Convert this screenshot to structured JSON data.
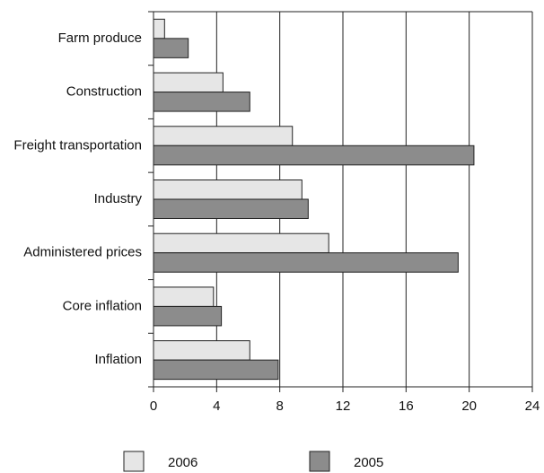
{
  "chart_data": {
    "type": "bar",
    "orientation": "horizontal",
    "categories": [
      "Farm produce",
      "Construction",
      "Freight transportation",
      "Industry",
      "Administered prices",
      "Core inflation",
      "Inflation"
    ],
    "series": [
      {
        "name": "2006",
        "color": "#e6e6e6",
        "values": [
          0.7,
          4.4,
          8.8,
          9.4,
          11.1,
          3.8,
          6.1
        ]
      },
      {
        "name": "2005",
        "color": "#8c8c8c",
        "values": [
          2.2,
          6.1,
          20.3,
          9.8,
          19.3,
          4.3,
          7.9
        ]
      }
    ],
    "xlim": [
      0,
      24
    ],
    "xticks": [
      0,
      4,
      8,
      12,
      16,
      20,
      24
    ],
    "grid": true
  }
}
